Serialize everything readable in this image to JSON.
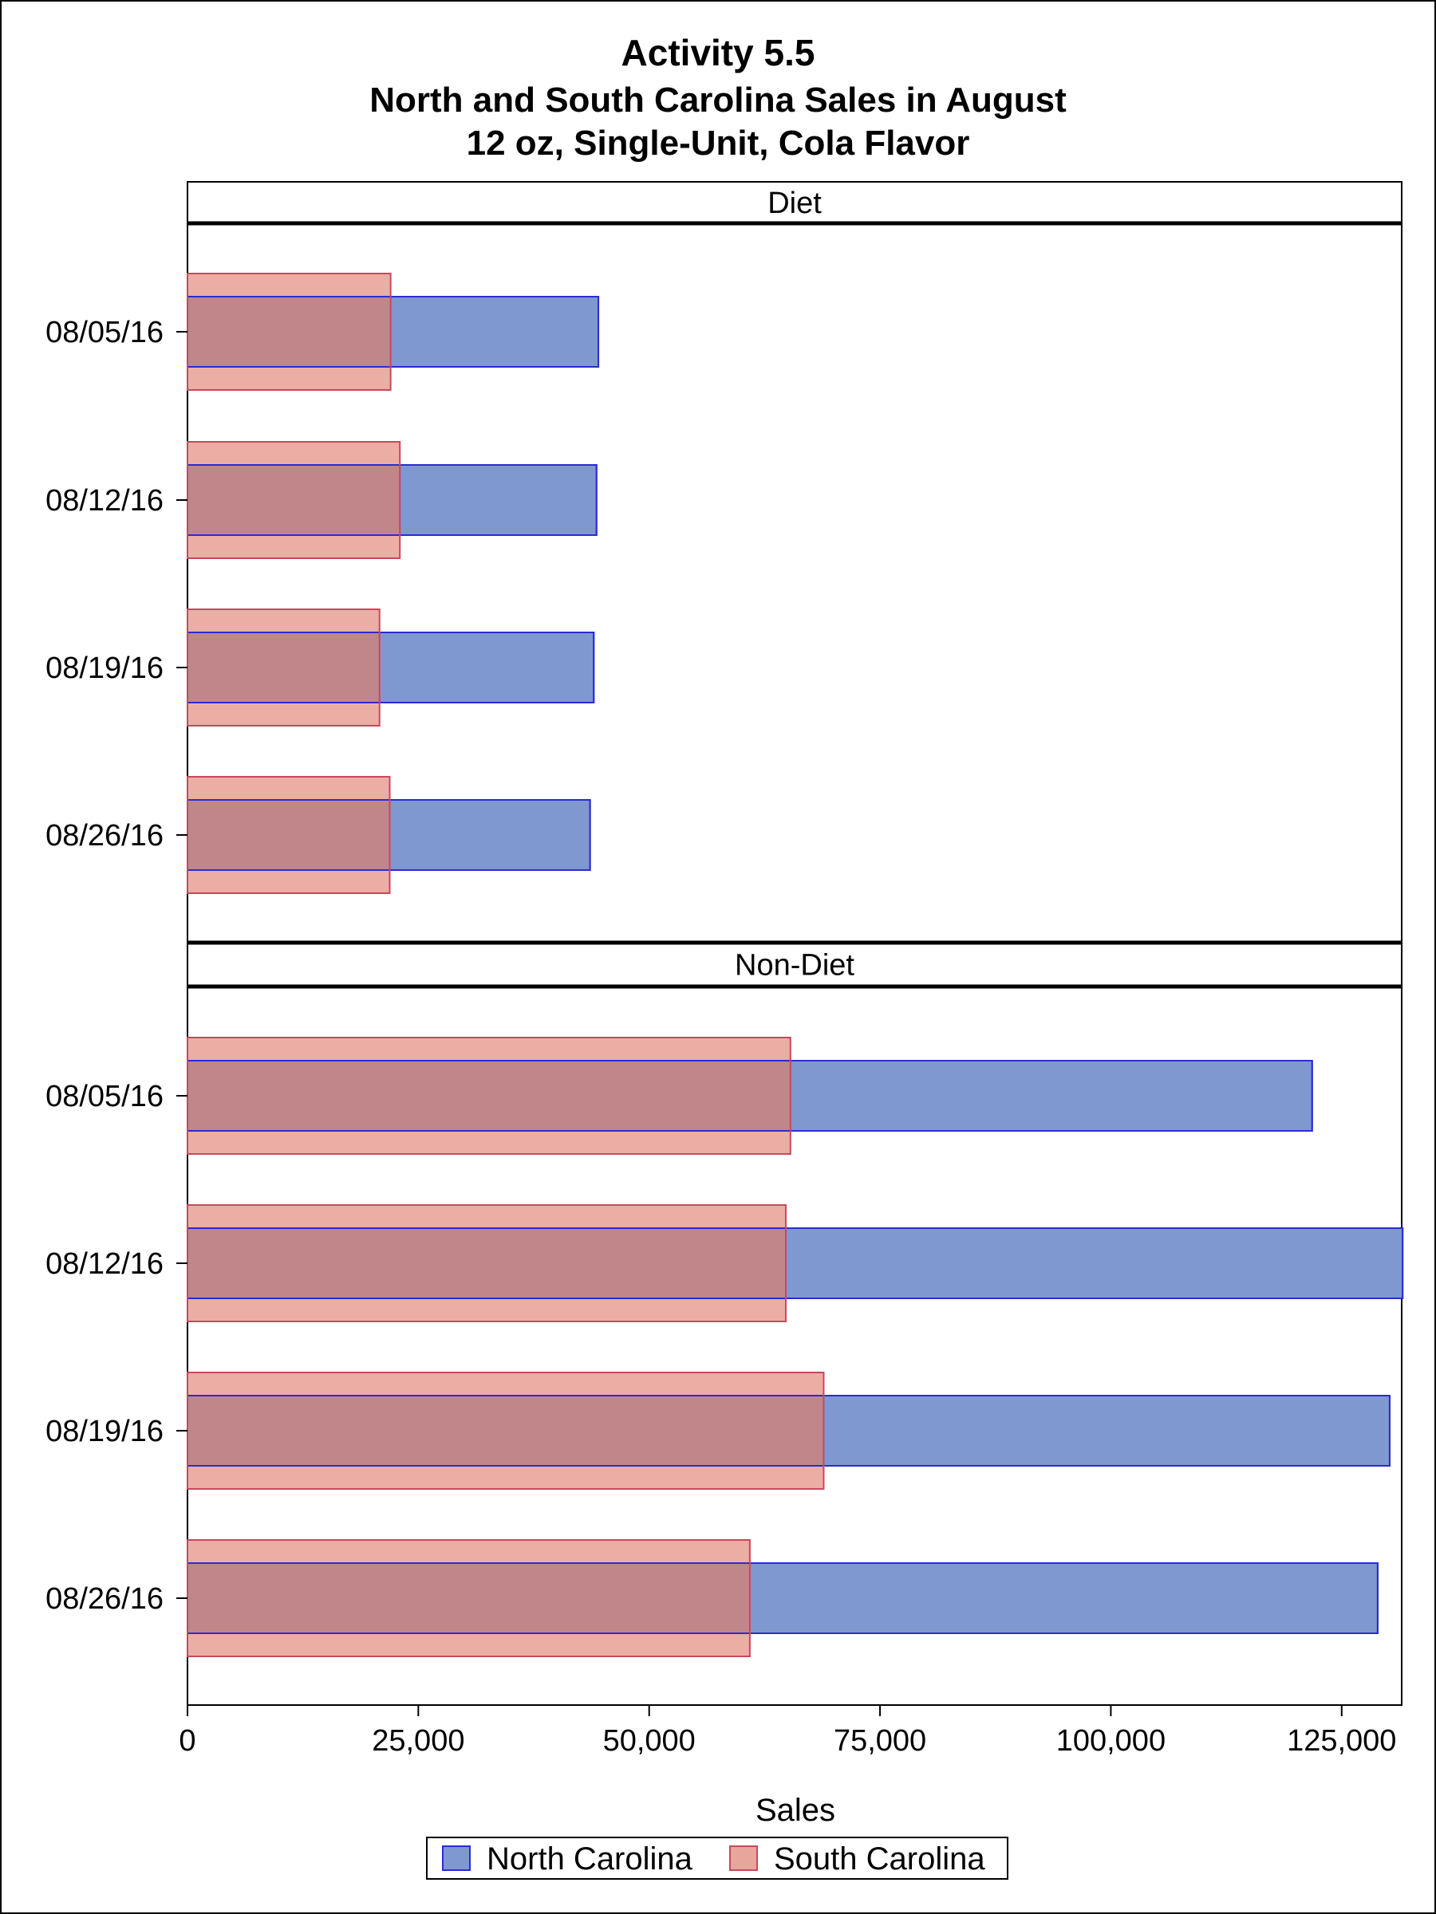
{
  "chart_data": {
    "type": "bar",
    "title": "Activity 5.5",
    "subtitle_lines": [
      "North and South Carolina Sales in August",
      "12 oz, Single-Unit, Cola Flavor"
    ],
    "xlabel": "Sales",
    "ylabel": "",
    "xlim": [
      0,
      131500
    ],
    "x_ticks": [
      0,
      25000,
      50000,
      75000,
      100000,
      125000
    ],
    "x_tick_labels": [
      "0",
      "25,000",
      "50,000",
      "75,000",
      "100,000",
      "125,000"
    ],
    "categories": [
      "08/05/16",
      "08/12/16",
      "08/19/16",
      "08/26/16"
    ],
    "panels": [
      {
        "label": "Diet",
        "series": [
          {
            "name": "North Carolina",
            "values": [
              44500,
              44300,
              44000,
              43600
            ]
          },
          {
            "name": "South Carolina",
            "values": [
              22000,
              23000,
              20800,
              21900
            ]
          }
        ]
      },
      {
        "label": "Non-Diet",
        "series": [
          {
            "name": "North Carolina",
            "values": [
              121800,
              131600,
              130200,
              128900
            ]
          },
          {
            "name": "South Carolina",
            "values": [
              65300,
              64800,
              68900,
              60900
            ]
          }
        ]
      }
    ],
    "legend": {
      "position": "bottom-center",
      "entries": [
        {
          "name": "North Carolina"
        },
        {
          "name": "South Carolina"
        }
      ]
    },
    "colors": {
      "north_fill": "#7f98cf",
      "north_stroke": "#2b2bd6",
      "south_fill": "#e8a59b",
      "south_stroke": "#c8485c",
      "overlap_fill": "#c0868a"
    },
    "grid": false
  }
}
